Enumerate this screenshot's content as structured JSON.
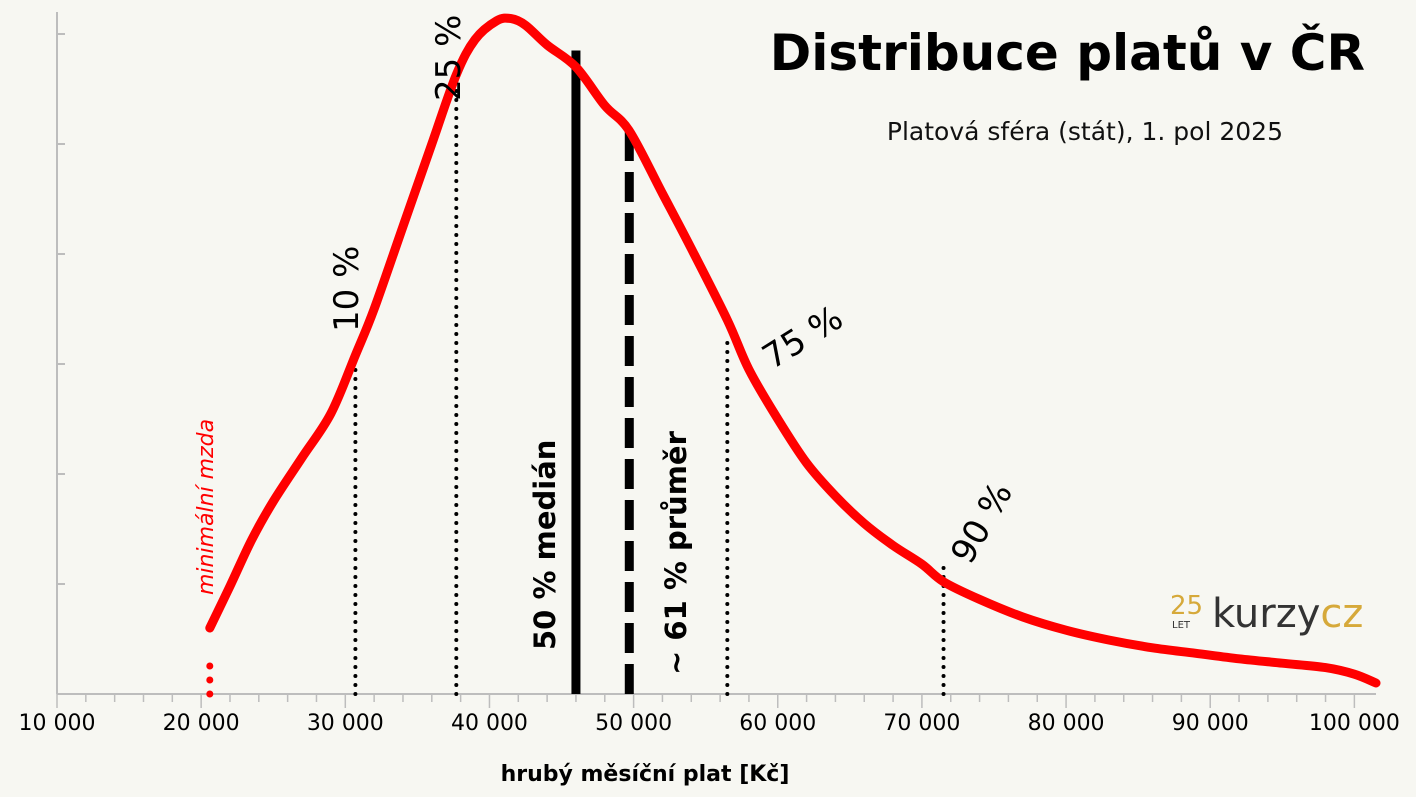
{
  "chart_data": {
    "type": "line",
    "title": "Distribuce platů v ČR",
    "subtitle": "Platová sféra (stát), 1. pol 2025",
    "xlabel": "hrubý měsíční plat [Kč]",
    "ylabel": "",
    "xlim": [
      10000,
      101500
    ],
    "x_ticks": [
      10000,
      20000,
      30000,
      40000,
      50000,
      60000,
      70000,
      80000,
      90000,
      100000
    ],
    "x_tick_labels": [
      "10 000",
      "20 000",
      "30 000",
      "40 000",
      "50 000",
      "60 000",
      "70 000",
      "80 000",
      "90 000",
      "100 000"
    ],
    "ylim": [
      0,
      6.2
    ],
    "y_ticks": [
      0,
      1,
      2,
      3,
      4,
      5,
      6
    ],
    "y_tick_labels_shown": false,
    "grid": false,
    "series": [
      {
        "color": "#ff0000",
        "x": [
          20600,
          22000,
          23500,
          25000,
          27000,
          29000,
          30700,
          32000,
          34000,
          36000,
          37700,
          39000,
          40500,
          41500,
          42500,
          44000,
          46000,
          48000,
          49700,
          52000,
          54000,
          56500,
          58000,
          60000,
          62000,
          64000,
          66000,
          68000,
          70000,
          71500,
          74000,
          77000,
          80000,
          83000,
          86000,
          89000,
          92000,
          95000,
          98000,
          100000,
          101500
        ],
        "y": [
          0.6,
          0.98,
          1.4,
          1.75,
          2.15,
          2.55,
          3.08,
          3.5,
          4.25,
          5.0,
          5.63,
          5.95,
          6.12,
          6.14,
          6.08,
          5.9,
          5.7,
          5.35,
          5.12,
          4.55,
          4.05,
          3.4,
          2.95,
          2.5,
          2.1,
          1.8,
          1.55,
          1.35,
          1.18,
          1.02,
          0.86,
          0.7,
          0.58,
          0.49,
          0.42,
          0.37,
          0.32,
          0.28,
          0.24,
          0.18,
          0.1
        ]
      }
    ],
    "reference_lines": [
      {
        "label": "minimální mzda",
        "x": 20600,
        "y_top": 0.35,
        "style": "dotted",
        "color": "#ff0000",
        "label_color": "#ff0000"
      },
      {
        "label": "10 %",
        "x": 30700,
        "y_top": 3.08,
        "style": "dotted",
        "color": "#000000"
      },
      {
        "label": "25 %",
        "x": 37700,
        "y_top": 5.63,
        "style": "dotted",
        "color": "#000000"
      },
      {
        "label": "50 % medián",
        "x": 46000,
        "y_top": 5.85,
        "style": "solid",
        "color": "#000000"
      },
      {
        "label": "~ 61 % průměr",
        "x": 49700,
        "y_top": 5.2,
        "style": "dashed",
        "color": "#000000"
      },
      {
        "label": "75 %",
        "x": 56500,
        "y_top": 3.25,
        "style": "dotted",
        "color": "#000000"
      },
      {
        "label": "90 %",
        "x": 71500,
        "y_top": 1.22,
        "style": "dotted",
        "color": "#000000"
      }
    ]
  },
  "logo": {
    "number": "25",
    "sublabel": "LET",
    "word_main": "kurzy",
    "word_accent": "cz",
    "color_main": "#333333",
    "color_accent": "#d6a93a"
  }
}
